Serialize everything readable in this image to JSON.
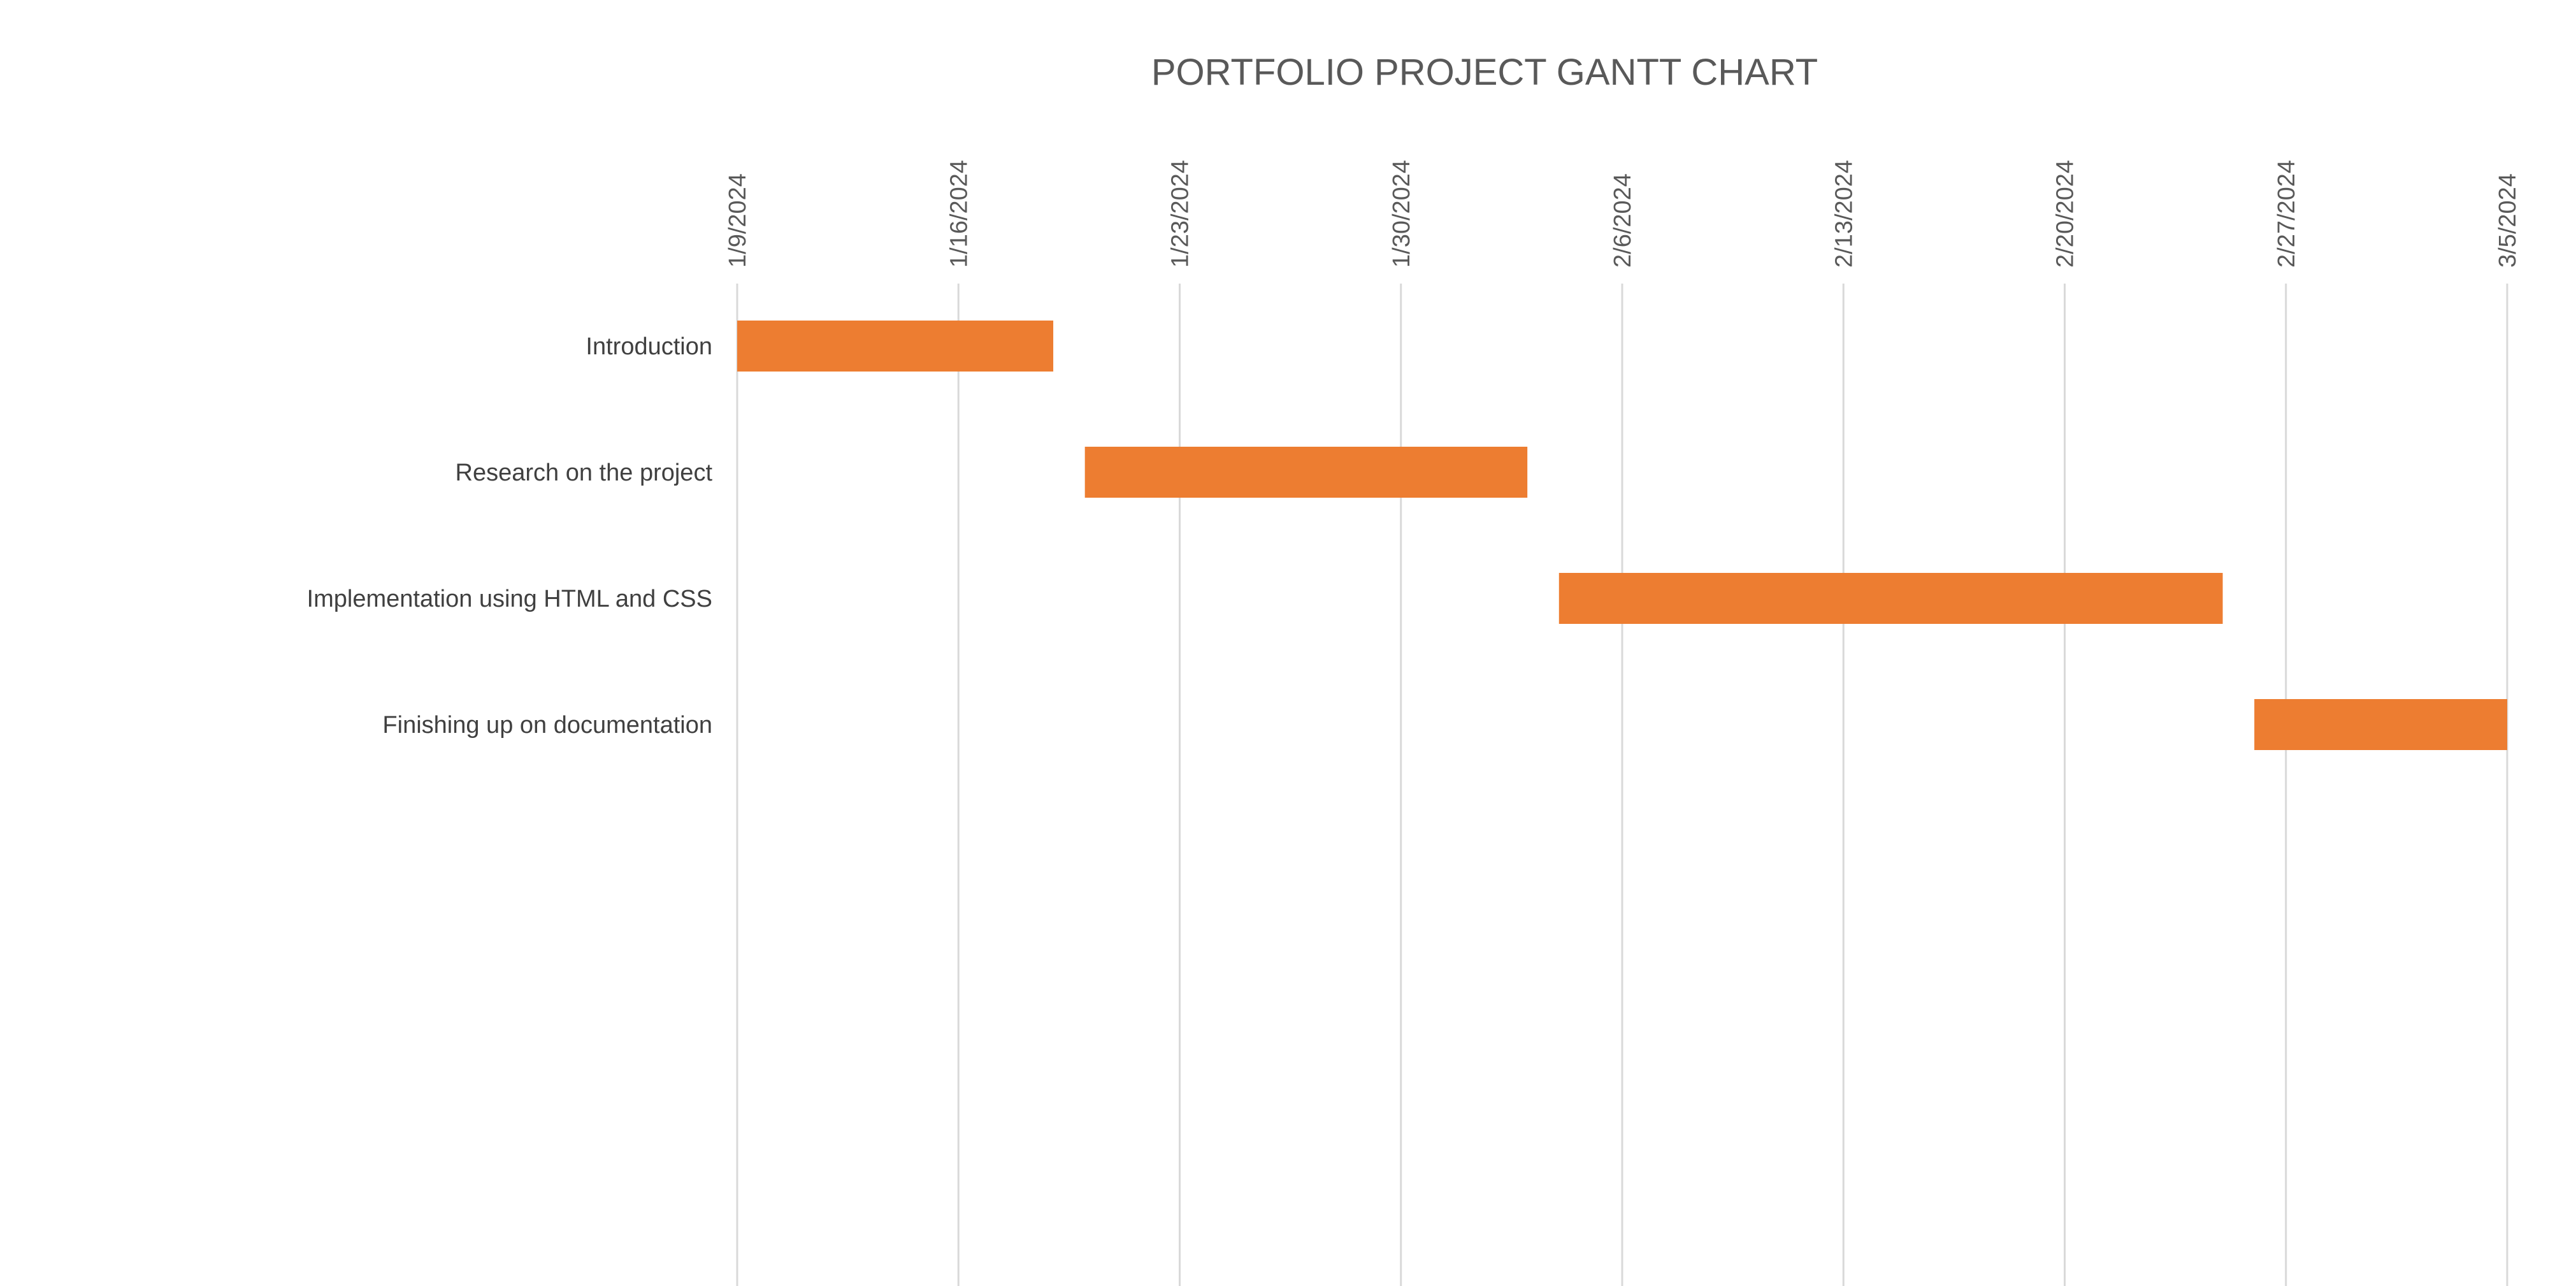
{
  "chart_data": {
    "type": "gantt",
    "title": "PORTFOLIO PROJECT GANTT CHART",
    "xlabel": "",
    "ylabel": "",
    "x_axis": {
      "position": "top",
      "tick_labels": [
        "1/9/2024",
        "1/16/2024",
        "1/23/2024",
        "1/30/2024",
        "2/6/2024",
        "2/13/2024",
        "2/20/2024",
        "2/27/2024",
        "3/5/2024"
      ],
      "range": [
        "2024-01-09",
        "2024-03-05"
      ],
      "grid": true
    },
    "tasks": [
      {
        "name": "Introduction",
        "start": "2024-01-09",
        "end": "2024-01-19"
      },
      {
        "name": "Research on the project",
        "start": "2024-01-20",
        "end": "2024-02-03"
      },
      {
        "name": "Implementation using HTML and CSS",
        "start": "2024-02-04",
        "end": "2024-02-25"
      },
      {
        "name": "Finishing up on documentation",
        "start": "2024-02-26",
        "end": "2024-03-05"
      }
    ],
    "bar_color": "#ed7d31",
    "legend": "none"
  }
}
